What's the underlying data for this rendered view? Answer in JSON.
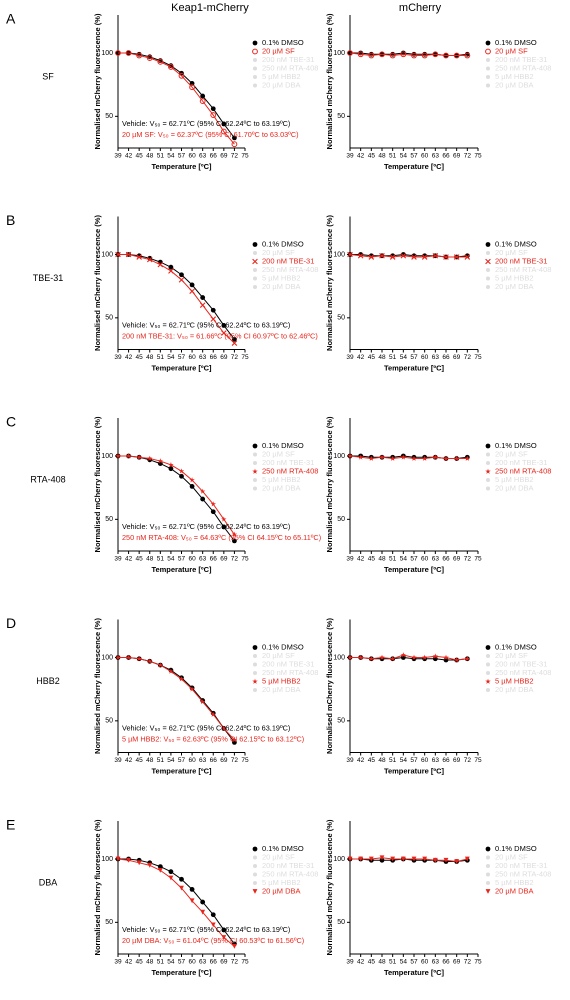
{
  "column_titles": [
    "Keap1-mCherry",
    "mCherry"
  ],
  "panels": [
    {
      "letter": "A",
      "compound": "SF"
    },
    {
      "letter": "B",
      "compound": "TBE-31"
    },
    {
      "letter": "C",
      "compound": "RTA-408"
    },
    {
      "letter": "D",
      "compound": "HBB2"
    },
    {
      "letter": "E",
      "compound": "DBA"
    }
  ],
  "chart_data": [
    {
      "type": "line",
      "x": [
        39,
        42,
        45,
        48,
        51,
        54,
        57,
        60,
        63,
        66,
        69,
        72
      ],
      "xlim": [
        39,
        75
      ],
      "xticks": [
        39,
        42,
        45,
        48,
        51,
        54,
        57,
        60,
        63,
        66,
        69,
        72,
        75
      ],
      "ylim": [
        25,
        130
      ],
      "yticks": [
        50,
        100
      ],
      "xlabel": "Temperature [ºC]",
      "ylabel": "Normalised mCherry fluorescence (%)",
      "series": [
        {
          "name": "0.1% DMSO",
          "color": "#000000",
          "marker": "circle",
          "values": [
            100,
            100,
            99,
            97,
            94,
            90,
            84,
            76,
            66,
            56,
            44,
            33
          ]
        },
        {
          "name": "20 µM SF",
          "color": "#e8251c",
          "marker": "open-circle",
          "values": [
            100,
            100,
            98,
            96,
            93,
            89,
            82,
            73,
            62,
            51,
            38,
            28
          ]
        },
        {
          "name": "200 nM TBE-31",
          "color": "#dddddd"
        },
        {
          "name": "250 nM RTA-408",
          "color": "#dddddd"
        },
        {
          "name": "5 µM HBB2",
          "color": "#dddddd"
        },
        {
          "name": "20 µM DBA",
          "color": "#dddddd"
        }
      ],
      "annotations": [
        {
          "text": "Vehicle: V₅₀ = 62.71ºC (95% CI 62.24ºC to 63.19ºC)",
          "color": "#000000"
        },
        {
          "text": "20 µM SF: V₅₀ = 62.37ºC (95% CI 61.70ºC to 63.03ºC)",
          "color": "#e8251c"
        }
      ]
    },
    {
      "type": "line",
      "x": [
        39,
        42,
        45,
        48,
        51,
        54,
        57,
        60,
        63,
        66,
        69,
        72
      ],
      "xlim": [
        39,
        75
      ],
      "xticks": [
        39,
        42,
        45,
        48,
        51,
        54,
        57,
        60,
        63,
        66,
        69,
        72,
        75
      ],
      "ylim": [
        25,
        130
      ],
      "yticks": [
        50,
        100
      ],
      "xlabel": "Temperature [ºC]",
      "ylabel": "Normalised mCherry fluorescence (%)",
      "series": [
        {
          "name": "0.1% DMSO",
          "color": "#000000",
          "marker": "circle",
          "values": [
            100,
            100,
            99,
            99,
            99,
            100,
            99,
            99,
            99,
            98,
            98,
            99
          ]
        },
        {
          "name": "20 µM SF",
          "color": "#e8251c",
          "marker": "open-circle",
          "values": [
            100,
            99,
            98,
            99,
            98,
            99,
            98,
            98,
            99,
            98,
            98,
            98
          ]
        },
        {
          "name": "200 nM TBE-31",
          "color": "#dddddd"
        },
        {
          "name": "250 nM RTA-408",
          "color": "#dddddd"
        },
        {
          "name": "5 µM HBB2",
          "color": "#dddddd"
        },
        {
          "name": "20 µM DBA",
          "color": "#dddddd"
        }
      ]
    },
    {
      "type": "line",
      "x": [
        39,
        42,
        45,
        48,
        51,
        54,
        57,
        60,
        63,
        66,
        69,
        72
      ],
      "xlim": [
        39,
        75
      ],
      "xticks": [
        39,
        42,
        45,
        48,
        51,
        54,
        57,
        60,
        63,
        66,
        69,
        72,
        75
      ],
      "ylim": [
        25,
        130
      ],
      "yticks": [
        50,
        100
      ],
      "xlabel": "Temperature [ºC]",
      "ylabel": "Normalised mCherry fluorescence (%)",
      "series": [
        {
          "name": "0.1% DMSO",
          "color": "#000000",
          "marker": "circle",
          "values": [
            100,
            100,
            99,
            97,
            94,
            90,
            84,
            76,
            66,
            56,
            44,
            33
          ]
        },
        {
          "name": "20 µM SF",
          "color": "#dddddd"
        },
        {
          "name": "200 nM TBE-31",
          "color": "#e8251c",
          "marker": "x",
          "values": [
            100,
            100,
            98,
            96,
            92,
            87,
            80,
            71,
            60,
            49,
            38,
            30
          ]
        },
        {
          "name": "250 nM RTA-408",
          "color": "#dddddd"
        },
        {
          "name": "5 µM HBB2",
          "color": "#dddddd"
        },
        {
          "name": "20 µM DBA",
          "color": "#dddddd"
        }
      ],
      "annotations": [
        {
          "text": "Vehicle: V₅₀ = 62.71ºC (95% CI 62.24ºC to 63.19ºC)",
          "color": "#000000"
        },
        {
          "text": "200 nM TBE-31: V₅₀ = 61.66ºC (95% CI 60.97ºC to 62.46ºC)",
          "color": "#e8251c"
        }
      ]
    },
    {
      "type": "line",
      "x": [
        39,
        42,
        45,
        48,
        51,
        54,
        57,
        60,
        63,
        66,
        69,
        72
      ],
      "xlim": [
        39,
        75
      ],
      "xticks": [
        39,
        42,
        45,
        48,
        51,
        54,
        57,
        60,
        63,
        66,
        69,
        72,
        75
      ],
      "ylim": [
        25,
        130
      ],
      "yticks": [
        50,
        100
      ],
      "xlabel": "Temperature [ºC]",
      "ylabel": "Normalised mCherry fluorescence (%)",
      "series": [
        {
          "name": "0.1% DMSO",
          "color": "#000000",
          "marker": "circle",
          "values": [
            100,
            100,
            99,
            99,
            99,
            100,
            99,
            99,
            99,
            98,
            98,
            99
          ]
        },
        {
          "name": "20 µM SF",
          "color": "#dddddd"
        },
        {
          "name": "200 nM TBE-31",
          "color": "#e8251c",
          "marker": "x",
          "values": [
            100,
            99,
            98,
            99,
            98,
            99,
            98,
            98,
            99,
            98,
            98,
            98
          ]
        },
        {
          "name": "250 nM RTA-408",
          "color": "#dddddd"
        },
        {
          "name": "5 µM HBB2",
          "color": "#dddddd"
        },
        {
          "name": "20 µM DBA",
          "color": "#dddddd"
        }
      ]
    },
    {
      "type": "line",
      "x": [
        39,
        42,
        45,
        48,
        51,
        54,
        57,
        60,
        63,
        66,
        69,
        72
      ],
      "xlim": [
        39,
        75
      ],
      "xticks": [
        39,
        42,
        45,
        48,
        51,
        54,
        57,
        60,
        63,
        66,
        69,
        72,
        75
      ],
      "ylim": [
        25,
        130
      ],
      "yticks": [
        50,
        100
      ],
      "xlabel": "Temperature [ºC]",
      "ylabel": "Normalised mCherry fluorescence (%)",
      "series": [
        {
          "name": "0.1% DMSO",
          "color": "#000000",
          "marker": "circle",
          "values": [
            100,
            100,
            99,
            97,
            94,
            90,
            84,
            76,
            66,
            56,
            44,
            33
          ]
        },
        {
          "name": "20 µM SF",
          "color": "#dddddd"
        },
        {
          "name": "200 nM TBE-31",
          "color": "#dddddd"
        },
        {
          "name": "250 nM RTA-408",
          "color": "#e8251c",
          "marker": "star",
          "values": [
            100,
            100,
            99,
            98,
            96,
            93,
            88,
            81,
            72,
            62,
            50,
            38
          ]
        },
        {
          "name": "5 µM HBB2",
          "color": "#dddddd"
        },
        {
          "name": "20 µM DBA",
          "color": "#dddddd"
        }
      ],
      "annotations": [
        {
          "text": "Vehicle: V₅₀ = 62.71ºC (95% CI 62.24ºC to 63.19ºC)",
          "color": "#000000"
        },
        {
          "text": "250 nM RTA-408: V₅₀ = 64.63ºC (95% CI 64.15ºC to 65.11ºC)",
          "color": "#e8251c"
        }
      ]
    },
    {
      "type": "line",
      "x": [
        39,
        42,
        45,
        48,
        51,
        54,
        57,
        60,
        63,
        66,
        69,
        72
      ],
      "xlim": [
        39,
        75
      ],
      "xticks": [
        39,
        42,
        45,
        48,
        51,
        54,
        57,
        60,
        63,
        66,
        69,
        72,
        75
      ],
      "ylim": [
        25,
        130
      ],
      "yticks": [
        50,
        100
      ],
      "xlabel": "Temperature [ºC]",
      "ylabel": "Normalised mCherry fluorescence (%)",
      "series": [
        {
          "name": "0.1% DMSO",
          "color": "#000000",
          "marker": "circle",
          "values": [
            100,
            100,
            99,
            99,
            99,
            100,
            99,
            99,
            99,
            98,
            98,
            99
          ]
        },
        {
          "name": "20 µM SF",
          "color": "#dddddd"
        },
        {
          "name": "200 nM TBE-31",
          "color": "#dddddd"
        },
        {
          "name": "250 nM RTA-408",
          "color": "#e8251c",
          "marker": "star",
          "values": [
            100,
            99,
            98,
            99,
            98,
            99,
            98,
            98,
            99,
            98,
            98,
            98
          ]
        },
        {
          "name": "5 µM HBB2",
          "color": "#dddddd"
        },
        {
          "name": "20 µM DBA",
          "color": "#dddddd"
        }
      ]
    },
    {
      "type": "line",
      "x": [
        39,
        42,
        45,
        48,
        51,
        54,
        57,
        60,
        63,
        66,
        69,
        72
      ],
      "xlim": [
        39,
        75
      ],
      "xticks": [
        39,
        42,
        45,
        48,
        51,
        54,
        57,
        60,
        63,
        66,
        69,
        72,
        75
      ],
      "ylim": [
        25,
        130
      ],
      "yticks": [
        50,
        100
      ],
      "xlabel": "Temperature [ºC]",
      "ylabel": "Normalised mCherry fluorescence (%)",
      "series": [
        {
          "name": "0.1% DMSO",
          "color": "#000000",
          "marker": "circle",
          "values": [
            100,
            100,
            99,
            97,
            94,
            90,
            84,
            76,
            66,
            56,
            44,
            33
          ]
        },
        {
          "name": "20 µM SF",
          "color": "#dddddd"
        },
        {
          "name": "200 nM TBE-31",
          "color": "#dddddd"
        },
        {
          "name": "250 nM RTA-408",
          "color": "#dddddd"
        },
        {
          "name": "5 µM HBB2",
          "color": "#e8251c",
          "marker": "star",
          "values": [
            100,
            100,
            99,
            97,
            94,
            89,
            83,
            75,
            65,
            55,
            44,
            35
          ]
        },
        {
          "name": "20 µM DBA",
          "color": "#dddddd"
        }
      ],
      "annotations": [
        {
          "text": "Vehicle: V₅₀ = 62.71ºC (95% CI 62.24ºC to 63.19ºC)",
          "color": "#000000"
        },
        {
          "text": "5 µM HBB2: V₅₀ = 62.63ºC (95% CI 62.15ºC to 63.12ºC)",
          "color": "#e8251c"
        }
      ]
    },
    {
      "type": "line",
      "x": [
        39,
        42,
        45,
        48,
        51,
        54,
        57,
        60,
        63,
        66,
        69,
        72
      ],
      "xlim": [
        39,
        75
      ],
      "xticks": [
        39,
        42,
        45,
        48,
        51,
        54,
        57,
        60,
        63,
        66,
        69,
        72,
        75
      ],
      "ylim": [
        25,
        130
      ],
      "yticks": [
        50,
        100
      ],
      "xlabel": "Temperature [ºC]",
      "ylabel": "Normalised mCherry fluorescence (%)",
      "series": [
        {
          "name": "0.1% DMSO",
          "color": "#000000",
          "marker": "circle",
          "values": [
            100,
            100,
            99,
            99,
            99,
            100,
            99,
            99,
            99,
            98,
            98,
            99
          ]
        },
        {
          "name": "20 µM SF",
          "color": "#dddddd"
        },
        {
          "name": "200 nM TBE-31",
          "color": "#dddddd"
        },
        {
          "name": "250 nM RTA-408",
          "color": "#dddddd"
        },
        {
          "name": "5 µM HBB2",
          "color": "#e8251c",
          "marker": "star",
          "values": [
            100,
            100,
            99,
            100,
            99,
            102,
            100,
            100,
            101,
            100,
            98,
            99
          ]
        },
        {
          "name": "20 µM DBA",
          "color": "#dddddd"
        }
      ]
    },
    {
      "type": "line",
      "x": [
        39,
        42,
        45,
        48,
        51,
        54,
        57,
        60,
        63,
        66,
        69,
        72
      ],
      "xlim": [
        39,
        75
      ],
      "xticks": [
        39,
        42,
        45,
        48,
        51,
        54,
        57,
        60,
        63,
        66,
        69,
        72,
        75
      ],
      "ylim": [
        25,
        130
      ],
      "yticks": [
        50,
        100
      ],
      "xlabel": "Temperature [ºC]",
      "ylabel": "Normalised mCherry fluorescence (%)",
      "series": [
        {
          "name": "0.1% DMSO",
          "color": "#000000",
          "marker": "circle",
          "values": [
            100,
            100,
            99,
            97,
            94,
            90,
            84,
            76,
            66,
            56,
            44,
            33
          ]
        },
        {
          "name": "20 µM SF",
          "color": "#dddddd"
        },
        {
          "name": "200 nM TBE-31",
          "color": "#dddddd"
        },
        {
          "name": "250 nM RTA-408",
          "color": "#dddddd"
        },
        {
          "name": "5 µM HBB2",
          "color": "#dddddd"
        },
        {
          "name": "20 µM DBA",
          "color": "#e8251c",
          "marker": "triangle-down",
          "values": [
            100,
            99,
            97,
            95,
            91,
            85,
            77,
            67,
            58,
            48,
            38,
            31
          ]
        }
      ],
      "annotations": [
        {
          "text": "Vehicle: V₅₀ = 62.71ºC (95% CI 62.24ºC to 63.19ºC)",
          "color": "#000000"
        },
        {
          "text": "20 µM DBA: V₅₀ = 61.04ºC (95% CI 60.53ºC to 61.56ºC)",
          "color": "#e8251c"
        }
      ]
    },
    {
      "type": "line",
      "x": [
        39,
        42,
        45,
        48,
        51,
        54,
        57,
        60,
        63,
        66,
        69,
        72
      ],
      "xlim": [
        39,
        75
      ],
      "xticks": [
        39,
        42,
        45,
        48,
        51,
        54,
        57,
        60,
        63,
        66,
        69,
        72,
        75
      ],
      "ylim": [
        25,
        130
      ],
      "yticks": [
        50,
        100
      ],
      "xlabel": "Temperature [ºC]",
      "ylabel": "Normalised mCherry fluorescence (%)",
      "series": [
        {
          "name": "0.1% DMSO",
          "color": "#000000",
          "marker": "circle",
          "values": [
            100,
            100,
            99,
            99,
            99,
            100,
            99,
            99,
            99,
            98,
            98,
            99
          ]
        },
        {
          "name": "20 µM SF",
          "color": "#dddddd"
        },
        {
          "name": "200 nM TBE-31",
          "color": "#dddddd"
        },
        {
          "name": "250 nM RTA-408",
          "color": "#dddddd"
        },
        {
          "name": "5 µM HBB2",
          "color": "#dddddd"
        },
        {
          "name": "20 µM DBA",
          "color": "#e8251c",
          "marker": "triangle-down",
          "values": [
            100,
            100,
            100,
            101,
            100,
            100,
            100,
            100,
            99,
            99,
            98,
            100
          ]
        }
      ]
    }
  ]
}
